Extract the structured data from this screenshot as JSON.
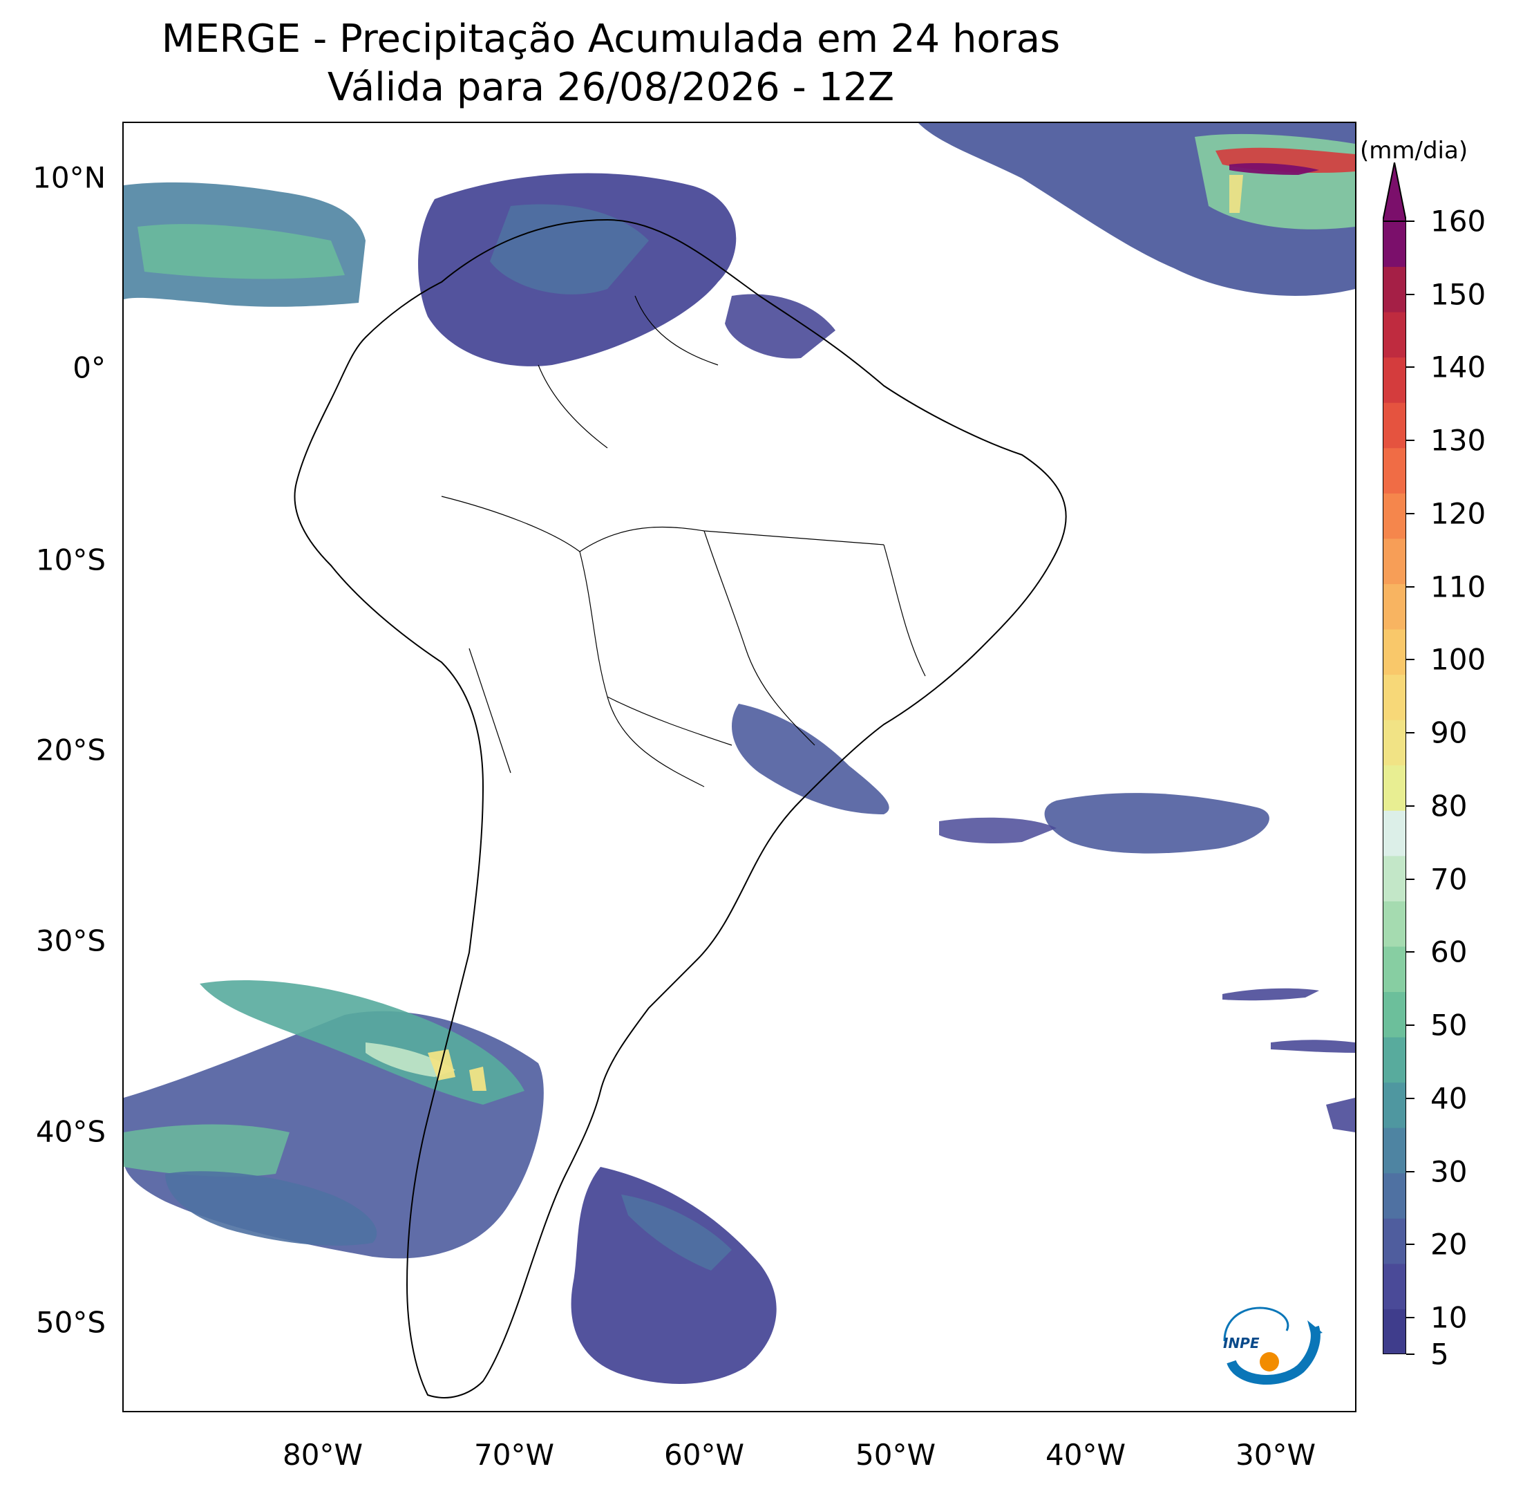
{
  "title": {
    "line1": "MERGE - Precipitação Acumulada em 24 horas",
    "line2": "Válida para 26/08/2026 - 12Z"
  },
  "map": {
    "lat_labels": [
      "10°N",
      "0°",
      "10°S",
      "20°S",
      "30°S",
      "40°S",
      "50°S"
    ],
    "lon_labels": [
      "80°W",
      "70°W",
      "60°W",
      "50°W",
      "40°W",
      "30°W"
    ],
    "extent": {
      "lon": [
        -90,
        -25
      ],
      "lat": [
        -56,
        13
      ]
    }
  },
  "colorbar": {
    "unit": "(mm/dia)",
    "ticks": [
      "5",
      "10",
      "20",
      "30",
      "40",
      "50",
      "60",
      "70",
      "80",
      "90",
      "100",
      "110",
      "120",
      "130",
      "140",
      "150",
      "160"
    ],
    "colors": [
      "#3f3d8c",
      "#4a4a98",
      "#4f5d9e",
      "#4f71a2",
      "#4e84a2",
      "#4f97a0",
      "#58ab9d",
      "#6cbf9b",
      "#87cea2",
      "#a5dbb0",
      "#c3e7c8",
      "#dcefe8",
      "#e8ee92",
      "#f1e385",
      "#f7d878",
      "#f9c86a",
      "#f8b461",
      "#f79e57",
      "#f5864c",
      "#f06c45",
      "#e5533f",
      "#d43c3d",
      "#bf2b3f",
      "#a51f46",
      "#7b0f6b"
    ],
    "extend_color": "#7b0f6b"
  },
  "logo": {
    "text": "INPE"
  }
}
